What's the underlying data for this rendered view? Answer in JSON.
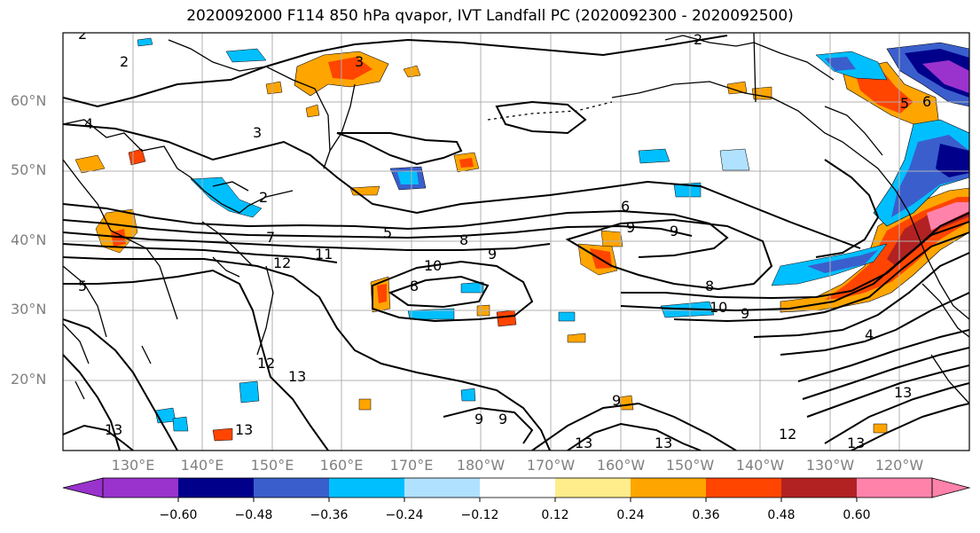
{
  "title": "2020092000 F114 850 hPa qvapor, IVT Landfall PC (2020092300 - 2020092500)",
  "lat_labels": [
    "60°N",
    "50°N",
    "40°N",
    "30°N",
    "20°N"
  ],
  "lon_labels": [
    "130°E",
    "140°E",
    "150°E",
    "160°E",
    "170°E",
    "180°W",
    "170°W",
    "160°W",
    "150°W",
    "140°W",
    "130°W",
    "120°W"
  ],
  "colorbar": {
    "colors": [
      "#9a32cd",
      "#00008b",
      "#3a5fcd",
      "#00bfff",
      "#b0e2ff",
      "#ffffff",
      "#ffec8b",
      "#ffa500",
      "#ff4500",
      "#b22222",
      "#ff82ab"
    ],
    "tick_labels": [
      "−0.60",
      "−0.48",
      "−0.36",
      "−0.24",
      "−0.12",
      "0.12",
      "0.24",
      "0.36",
      "0.48",
      "0.60"
    ],
    "extend": "both"
  },
  "contour_labels": [
    "2",
    "3",
    "4",
    "5",
    "6",
    "7",
    "8",
    "9",
    "10",
    "11",
    "12",
    "13"
  ],
  "extent": {
    "lon_min": 120,
    "lon_max": 250,
    "lat_min": 10,
    "lat_max": 70
  }
}
